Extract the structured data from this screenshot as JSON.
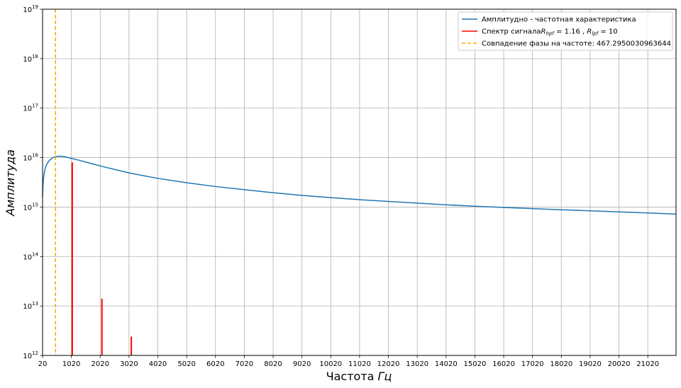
{
  "chart_data": {
    "type": "line",
    "title": "",
    "xlabel": "Частота Гц",
    "ylabel": "Амплитуда",
    "yscale": "log",
    "xlim": [
      20,
      22000
    ],
    "ylim": [
      1000000000000.0,
      1e+19
    ],
    "grid": true,
    "legend_position": "top-right",
    "x_ticks": [
      "20",
      "1020",
      "2020",
      "3020",
      "4020",
      "5020",
      "6020",
      "7020",
      "8020",
      "9020",
      "10020",
      "11020",
      "12020",
      "13020",
      "14020",
      "15020",
      "16020",
      "17020",
      "18020",
      "19020",
      "20020",
      "21020"
    ],
    "y_ticks": [
      {
        "base": "10",
        "exp": "12"
      },
      {
        "base": "10",
        "exp": "13"
      },
      {
        "base": "10",
        "exp": "14"
      },
      {
        "base": "10",
        "exp": "15"
      },
      {
        "base": "10",
        "exp": "16"
      },
      {
        "base": "10",
        "exp": "17"
      },
      {
        "base": "10",
        "exp": "18"
      },
      {
        "base": "10",
        "exp": "19"
      }
    ],
    "series": [
      {
        "name": "Амплитудно - частотная характеристика",
        "kind": "line",
        "color": "#1f77b4",
        "points": [
          [
            20,
            1600000000000000.0
          ],
          [
            30,
            2500000000000000.0
          ],
          [
            50,
            3700000000000000.0
          ],
          [
            80,
            5000000000000000.0
          ],
          [
            120,
            6300000000000000.0
          ],
          [
            180,
            7600000000000000.0
          ],
          [
            260,
            8800000000000000.0
          ],
          [
            350,
            9700000000000000.0
          ],
          [
            467,
            1.05e+16
          ],
          [
            600,
            1.07e+16
          ],
          [
            800,
            1.04e+16
          ],
          [
            1000,
            9700000000000000.0
          ],
          [
            1300,
            8800000000000000.0
          ],
          [
            1700,
            7600000000000000.0
          ],
          [
            2100,
            6600000000000000.0
          ],
          [
            2600,
            5600000000000000.0
          ],
          [
            3020,
            4900000000000000.0
          ],
          [
            4020,
            3800000000000000.0
          ],
          [
            5020,
            3100000000000000.0
          ],
          [
            6020,
            2600000000000000.0
          ],
          [
            7020,
            2250000000000000.0
          ],
          [
            8020,
            1950000000000000.0
          ],
          [
            9020,
            1720000000000000.0
          ],
          [
            10020,
            1550000000000000.0
          ],
          [
            11020,
            1410000000000000.0
          ],
          [
            12020,
            1300000000000000.0
          ],
          [
            13020,
            1200000000000000.0
          ],
          [
            14020,
            1110000000000000.0
          ],
          [
            15020,
            1040000000000000.0
          ],
          [
            16020,
            980000000000000.0
          ],
          [
            17020,
            930000000000000.0
          ],
          [
            18020,
            880000000000000.0
          ],
          [
            19020,
            840000000000000.0
          ],
          [
            20020,
            800000000000000.0
          ],
          [
            21020,
            760000000000000.0
          ],
          [
            22000,
            720000000000000.0
          ]
        ]
      },
      {
        "name": "Спектр сигнала",
        "name_math": {
          "r1_base": "R",
          "r1_sub": "hpf",
          "r1_val": "1.16",
          "r2_base": "R",
          "r2_sub": "lpf",
          "r2_val": "10"
        },
        "kind": "stem",
        "color": "#ff0000",
        "points": [
          [
            1050,
            8000000000000000.0
          ],
          [
            2080,
            14000000000000.0
          ],
          [
            3100,
            2400000000000.0
          ]
        ]
      },
      {
        "name": "Совпадение фазы на частоте: 467.2950030963644",
        "kind": "vline",
        "color": "#ffa500",
        "x": 467.2950030963644
      }
    ]
  }
}
